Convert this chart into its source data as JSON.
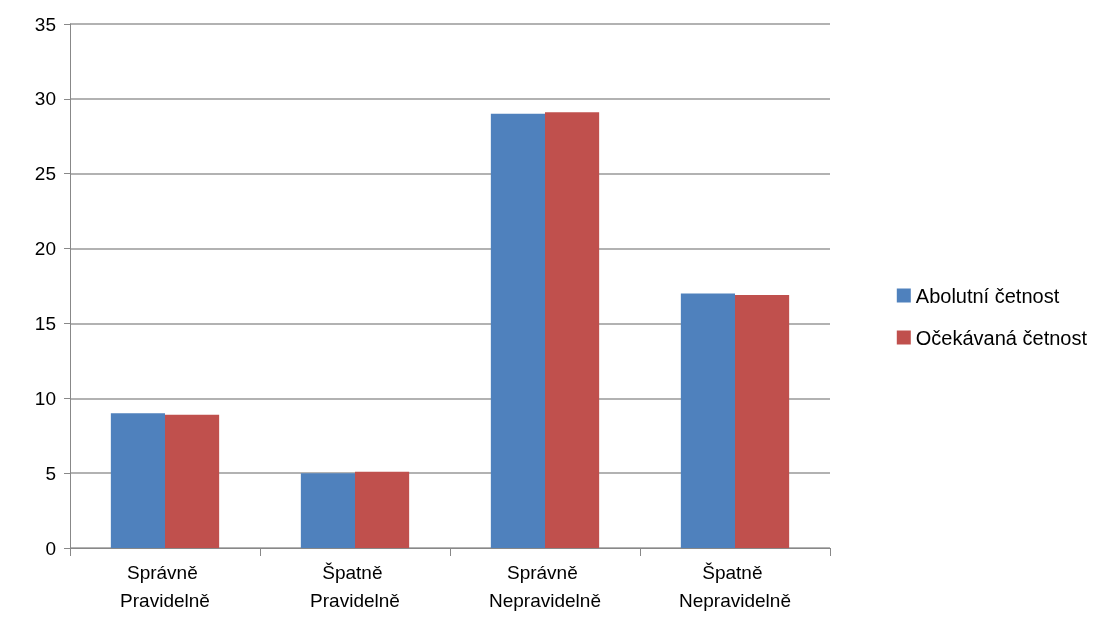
{
  "chart_data": {
    "type": "bar",
    "categories": [
      "Správně Pravidelně",
      "Špatně Pravidelně",
      "Správně Nepravidelně",
      "Špatně Nepravidelně"
    ],
    "series": [
      {
        "name": "Abolutní četnost",
        "color": "#4f81bd",
        "values": [
          9,
          5,
          29,
          17
        ]
      },
      {
        "name": "Očekávaná četnost",
        "color": "#c0504d",
        "values": [
          8.9,
          5.1,
          29.1,
          16.9
        ]
      }
    ],
    "ylim": [
      0,
      35
    ],
    "yticks": [
      0,
      5,
      10,
      15,
      20,
      25,
      30,
      35
    ],
    "grid": "y",
    "legend": "right"
  }
}
